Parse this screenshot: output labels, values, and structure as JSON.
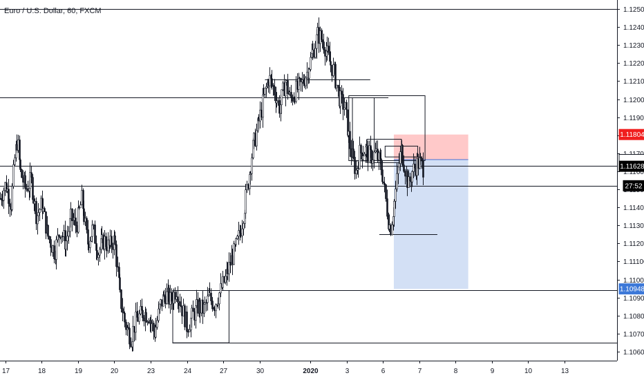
{
  "title": "Euro / U.S. Dollar, 60, FXCM",
  "colors": {
    "candle": "#131722",
    "axis": "#131722",
    "hline": "#131722",
    "stop_zone": "#ffc9c9",
    "target_zone": "#d3e0f5",
    "entry_line": "#4a6fd1",
    "tag_red": "#f01e1e",
    "tag_blue": "#3c78d8",
    "tag_black": "#000000",
    "tag_white": "#ffffff"
  },
  "chart_data": {
    "type": "candlestick",
    "symbol": "Euro / U.S. Dollar",
    "interval": "60",
    "source": "FXCM",
    "y_range": [
      1.1055,
      1.1255
    ],
    "y_ticks": [
      "1.12500",
      "1.12400",
      "1.12300",
      "1.12200",
      "1.12100",
      "1.12000",
      "1.11900",
      "1.11800",
      "1.11700",
      "1.11600",
      "1.11500",
      "1.11400",
      "1.11300",
      "1.11200",
      "1.11100",
      "1.11000",
      "1.10900",
      "1.10800",
      "1.10700",
      "1.10600"
    ],
    "y_tick_values": [
      1.125,
      1.124,
      1.123,
      1.122,
      1.121,
      1.12,
      1.119,
      1.118,
      1.117,
      1.116,
      1.115,
      1.114,
      1.113,
      1.112,
      1.111,
      1.11,
      1.109,
      1.108,
      1.107,
      1.106
    ],
    "x_range": [
      0,
      34
    ],
    "x_ticks": [
      {
        "label": "17",
        "pos": 0.3
      },
      {
        "label": "18",
        "pos": 2.3
      },
      {
        "label": "19",
        "pos": 4.3
      },
      {
        "label": "20",
        "pos": 6.3
      },
      {
        "label": "23",
        "pos": 8.3
      },
      {
        "label": "24",
        "pos": 10.3
      },
      {
        "label": "27",
        "pos": 12.3
      },
      {
        "label": "30",
        "pos": 14.3
      },
      {
        "label": "2020",
        "pos": 17.1
      },
      {
        "label": "3",
        "pos": 19.1
      },
      {
        "label": "6",
        "pos": 21.1
      },
      {
        "label": "7",
        "pos": 23.1
      },
      {
        "label": "8",
        "pos": 25.1
      },
      {
        "label": "9",
        "pos": 27.1
      },
      {
        "label": "10",
        "pos": 29.1
      },
      {
        "label": "13",
        "pos": 31.1
      }
    ],
    "path": [
      [
        0.0,
        1.1145
      ],
      [
        0.3,
        1.1153
      ],
      [
        0.6,
        1.1142
      ],
      [
        0.8,
        1.1168
      ],
      [
        0.95,
        1.1178
      ],
      [
        1.1,
        1.116
      ],
      [
        1.4,
        1.115
      ],
      [
        1.7,
        1.1155
      ],
      [
        2.0,
        1.1135
      ],
      [
        2.3,
        1.1142
      ],
      [
        2.6,
        1.1125
      ],
      [
        3.0,
        1.1115
      ],
      [
        3.3,
        1.1128
      ],
      [
        3.6,
        1.112
      ],
      [
        3.9,
        1.1134
      ],
      [
        4.2,
        1.113
      ],
      [
        4.5,
        1.1145
      ],
      [
        4.8,
        1.112
      ],
      [
        5.1,
        1.1128
      ],
      [
        5.4,
        1.1115
      ],
      [
        5.7,
        1.1122
      ],
      [
        6.0,
        1.1118
      ],
      [
        6.3,
        1.1122
      ],
      [
        6.6,
        1.109
      ],
      [
        6.9,
        1.1075
      ],
      [
        7.2,
        1.1068
      ],
      [
        7.5,
        1.1078
      ],
      [
        7.9,
        1.1082
      ],
      [
        8.2,
        1.108
      ],
      [
        8.5,
        1.107
      ],
      [
        8.8,
        1.1085
      ],
      [
        9.1,
        1.1092
      ],
      [
        9.4,
        1.1088
      ],
      [
        9.7,
        1.1095
      ],
      [
        10.0,
        1.1085
      ],
      [
        10.3,
        1.1074
      ],
      [
        10.6,
        1.108
      ],
      [
        10.9,
        1.1085
      ],
      [
        11.2,
        1.1083
      ],
      [
        11.5,
        1.109
      ],
      [
        11.8,
        1.1086
      ],
      [
        12.1,
        1.1093
      ],
      [
        12.4,
        1.11
      ],
      [
        12.7,
        1.111
      ],
      [
        13.0,
        1.1118
      ],
      [
        13.3,
        1.113
      ],
      [
        13.6,
        1.115
      ],
      [
        13.9,
        1.1172
      ],
      [
        14.2,
        1.1185
      ],
      [
        14.5,
        1.12
      ],
      [
        14.8,
        1.1212
      ],
      [
        15.1,
        1.1205
      ],
      [
        15.4,
        1.1195
      ],
      [
        15.7,
        1.121
      ],
      [
        16.0,
        1.12
      ],
      [
        16.3,
        1.1205
      ],
      [
        16.6,
        1.1208
      ],
      [
        16.9,
        1.1215
      ],
      [
        17.2,
        1.1225
      ],
      [
        17.5,
        1.1236
      ],
      [
        17.8,
        1.1232
      ],
      [
        18.1,
        1.1222
      ],
      [
        18.4,
        1.1215
      ],
      [
        18.7,
        1.12
      ],
      [
        19.0,
        1.1195
      ],
      [
        19.3,
        1.1172
      ],
      [
        19.6,
        1.116
      ],
      [
        19.8,
        1.117
      ],
      [
        20.1,
        1.1172
      ],
      [
        20.4,
        1.1168
      ],
      [
        20.7,
        1.117
      ],
      [
        21.0,
        1.1162
      ],
      [
        21.2,
        1.1148
      ],
      [
        21.4,
        1.1132
      ],
      [
        21.5,
        1.1128
      ],
      [
        21.7,
        1.1142
      ],
      [
        21.9,
        1.116
      ],
      [
        22.1,
        1.1172
      ],
      [
        22.3,
        1.1162
      ],
      [
        22.5,
        1.1152
      ],
      [
        22.7,
        1.116
      ],
      [
        22.9,
        1.1163
      ],
      [
        23.1,
        1.1165
      ],
      [
        23.3,
        1.1162
      ]
    ],
    "horizontal_lines": [
      {
        "price": 1.125,
        "x0": 0,
        "x1": 34
      },
      {
        "price": 1.1201,
        "x0": 0,
        "x1": 21.4
      },
      {
        "price": 1.1163,
        "x0": 0,
        "x1": 34
      },
      {
        "price": 1.1152,
        "x0": 0,
        "x1": 34
      },
      {
        "price": 1.1211,
        "x0": 14.6,
        "x1": 20.4
      },
      {
        "price": 1.1125,
        "x0": 20.9,
        "x1": 24.1
      },
      {
        "price": 1.1094,
        "x0": 12.6,
        "x1": 34
      },
      {
        "price": 1.1065,
        "x0": 9.5,
        "x1": 34
      }
    ],
    "boxes": [
      {
        "x0": 19.2,
        "x1": 23.4,
        "p_top": 1.1202,
        "p_bottom": 1.1166
      },
      {
        "x0": 19.4,
        "x1": 20.6,
        "p_top": 1.1201,
        "p_bottom": 1.1166
      },
      {
        "x0": 20.2,
        "x1": 22.1,
        "p_top": 1.1178,
        "p_bottom": 1.1165
      },
      {
        "x0": 21.2,
        "x1": 23.0,
        "p_top": 1.1174,
        "p_bottom": 1.1168
      },
      {
        "x0": 9.5,
        "x1": 12.6,
        "p_top": 1.1094,
        "p_bottom": 1.1065
      }
    ],
    "position": {
      "side": "short",
      "x0": 21.7,
      "x1": 25.8,
      "entry": 1.11665,
      "stop": 1.11804,
      "target": 1.10948
    },
    "price_tags": [
      {
        "label": "1.11804",
        "price": 1.11804,
        "color": "tag_red"
      },
      {
        "label": "1.11665",
        "price": 1.11665,
        "color": "tag_white"
      },
      {
        "label": "1.11628",
        "price": 1.11628,
        "color": "tag_black"
      },
      {
        "label": "27:52",
        "price": 1.1152,
        "color": "tag_black",
        "narrow": true
      },
      {
        "label": "1.10948",
        "price": 1.10948,
        "color": "tag_blue"
      }
    ]
  }
}
